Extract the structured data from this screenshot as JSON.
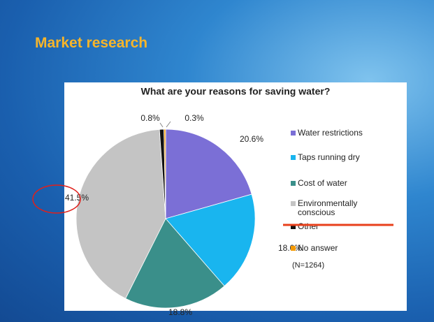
{
  "slide_title": "Market research",
  "chart_data": {
    "type": "pie",
    "title": "What are your reasons for saving water?",
    "categories": [
      "Water restrictions",
      "Taps running dry",
      "Cost of water",
      "Environmentally conscious",
      "Other",
      "No answer"
    ],
    "values": [
      20.6,
      18.0,
      18.8,
      41.5,
      0.8,
      0.3
    ],
    "value_labels": [
      "20.6%",
      "18.0%",
      "18.8%",
      "41.5%",
      "0.8%",
      "0.3%"
    ],
    "colors": [
      "#7b6fd6",
      "#19b5ef",
      "#3a8f8a",
      "#c4c4c4",
      "#111111",
      "#f59a00"
    ],
    "annotation": "(N=1264)"
  }
}
